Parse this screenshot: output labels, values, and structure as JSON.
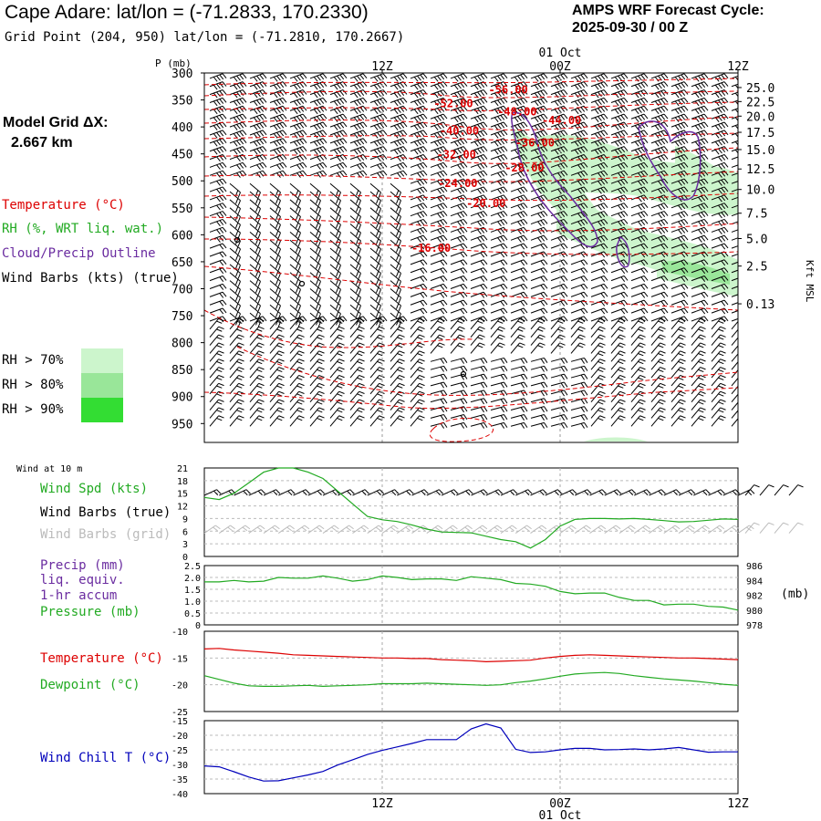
{
  "header": {
    "title": "Cape Adare:  lat/lon = (-71.2833, 170.2330)",
    "gridpoint": "Grid Point (204, 950) lat/lon = (-71.2810, 170.2667)",
    "amps_line1": "AMPS WRF Forecast Cycle:",
    "amps_line2": "2025-09-30 / 00  Z"
  },
  "model_grid": {
    "line1": "Model Grid ΔX:",
    "line2": "2.667 km"
  },
  "legend": {
    "temperature": "Temperature (°C)",
    "rh": "RH (%, WRT liq. wat.)",
    "cloud": "Cloud/Precip Outline",
    "wind": "Wind Barbs (kts) (true)",
    "rh70": "RH > 70%",
    "rh80": "RH > 80%",
    "rh90": "RH > 90%"
  },
  "colors": {
    "temperature": "#dd0000",
    "rh": "#22aa22",
    "cloud": "#6a2ca0",
    "rh70": "#ccf5cc",
    "rh80": "#99e699",
    "rh90": "#33dd33",
    "windchill": "#0000bb",
    "gridbarb": "#bbbbbb"
  },
  "time_axis": {
    "x_range": [
      0,
      36
    ],
    "ticks": [
      {
        "t": 12,
        "label": "12Z"
      },
      {
        "t": 24,
        "label": "00Z"
      },
      {
        "t": 36,
        "label": "12Z"
      }
    ],
    "date_label": "01 Oct"
  },
  "chart_data": [
    {
      "type": "contour",
      "name": "cross-section",
      "ylabel": "P (mb)",
      "ylim": [
        300,
        985
      ],
      "pressure_ticks": [
        300,
        350,
        400,
        450,
        500,
        550,
        600,
        650,
        700,
        750,
        800,
        850,
        900,
        950
      ],
      "right_axis_label": "Kft MSL",
      "height_ticks": [
        {
          "p": 327,
          "label": "25.0"
        },
        {
          "p": 353,
          "label": "22.5"
        },
        {
          "p": 380,
          "label": "20.0"
        },
        {
          "p": 410,
          "label": "17.5"
        },
        {
          "p": 442,
          "label": "15.0"
        },
        {
          "p": 478,
          "label": "12.5"
        },
        {
          "p": 516,
          "label": "10.0"
        },
        {
          "p": 560,
          "label": "7.5"
        },
        {
          "p": 607,
          "label": "5.0"
        },
        {
          "p": 658,
          "label": "2.5"
        },
        {
          "p": 728,
          "label": "0.13"
        }
      ],
      "temperature_labels": [
        {
          "t": 20.5,
          "p": 331,
          "label": "-56.00"
        },
        {
          "t": 16.8,
          "p": 357,
          "label": "-52.00"
        },
        {
          "t": 21.1,
          "p": 372,
          "label": "-48.00"
        },
        {
          "t": 24.1,
          "p": 388,
          "label": "-44.00"
        },
        {
          "t": 17.2,
          "p": 407,
          "label": "-40.00"
        },
        {
          "t": 22.3,
          "p": 429,
          "label": "-36.00"
        },
        {
          "t": 17.0,
          "p": 451,
          "label": "-32.00"
        },
        {
          "t": 21.6,
          "p": 476,
          "label": "-28.00"
        },
        {
          "t": 17.1,
          "p": 505,
          "label": "-24.00"
        },
        {
          "t": 19.0,
          "p": 542,
          "label": "-20.00"
        },
        {
          "t": 15.3,
          "p": 625,
          "label": "-16.00"
        }
      ]
    },
    {
      "type": "line",
      "name": "wind-10m",
      "title": "Wind at 10 m",
      "ylim": [
        0,
        21
      ],
      "yticks": [
        0,
        3,
        6,
        9,
        12,
        15,
        18,
        21
      ],
      "labels": [
        "Wind Spd (kts)",
        "Wind Barbs (true)",
        "Wind Barbs (grid)"
      ],
      "x": [
        0,
        1,
        2,
        3,
        4,
        5,
        6,
        7,
        8,
        9,
        10,
        11,
        12,
        13,
        14,
        15,
        16,
        17,
        18,
        19,
        20,
        21,
        22,
        23,
        24,
        25,
        26,
        27,
        28,
        29,
        30,
        31,
        32,
        33,
        34,
        35,
        36
      ],
      "values": [
        14,
        13.5,
        15,
        17.5,
        20,
        21,
        21,
        20,
        18.5,
        15.5,
        12.5,
        9.5,
        8.7,
        8.3,
        7.5,
        6.5,
        5.8,
        5.7,
        5.6,
        4.8,
        4,
        3.5,
        2,
        4,
        7.2,
        8.8,
        9,
        9,
        8.9,
        9,
        8.8,
        8.5,
        8.2,
        8.3,
        8.6,
        8.9,
        8.8
      ]
    },
    {
      "type": "line",
      "name": "precip-pressure",
      "labels": [
        "Precip (mm)",
        "liq. equiv.",
        "1-hr accum",
        "Pressure (mb)"
      ],
      "right_unit": "(mb)",
      "ylim_left": [
        0,
        2.5
      ],
      "yticks_left": [
        "0",
        "0.5",
        "1.0",
        "1.5",
        "2.0",
        "2.5"
      ],
      "ylim_right": [
        978,
        986
      ],
      "yticks_right": [
        978,
        980,
        982,
        984,
        986
      ],
      "x": [
        0,
        1,
        2,
        3,
        4,
        5,
        6,
        7,
        8,
        9,
        10,
        11,
        12,
        13,
        14,
        15,
        16,
        17,
        18,
        19,
        20,
        21,
        22,
        23,
        24,
        25,
        26,
        27,
        28,
        29,
        30,
        31,
        32,
        33,
        34,
        35,
        36
      ],
      "pressure": [
        983.8,
        983.8,
        984.0,
        983.8,
        983.9,
        984.4,
        984.3,
        984.3,
        984.6,
        984.3,
        983.9,
        984.1,
        984.6,
        984.4,
        984.1,
        984.2,
        984.2,
        984.0,
        984.5,
        984.3,
        984.1,
        983.6,
        983.5,
        983.2,
        982.5,
        982.2,
        982.3,
        982.3,
        981.7,
        981.3,
        981.3,
        980.7,
        980.8,
        980.8,
        980.5,
        980.4,
        980.0
      ]
    },
    {
      "type": "line",
      "name": "temp-dewpoint",
      "labels": [
        "Temperature (°C)",
        "Dewpoint (°C)"
      ],
      "ylim": [
        -25,
        -10
      ],
      "yticks": [
        -25,
        -20,
        -15,
        -10
      ],
      "x": [
        0,
        1,
        2,
        3,
        4,
        5,
        6,
        7,
        8,
        9,
        10,
        11,
        12,
        13,
        14,
        15,
        16,
        17,
        18,
        19,
        20,
        21,
        22,
        23,
        24,
        25,
        26,
        27,
        28,
        29,
        30,
        31,
        32,
        33,
        34,
        35,
        36
      ],
      "temperature": [
        -13.3,
        -13.2,
        -13.5,
        -13.7,
        -13.9,
        -14.1,
        -14.4,
        -14.5,
        -14.6,
        -14.7,
        -14.8,
        -14.9,
        -15.0,
        -15.0,
        -15.1,
        -15.1,
        -15.3,
        -15.4,
        -15.5,
        -15.7,
        -15.6,
        -15.5,
        -15.4,
        -15.0,
        -14.7,
        -14.5,
        -14.4,
        -14.5,
        -14.6,
        -14.7,
        -14.8,
        -14.9,
        -15.0,
        -15.0,
        -15.1,
        -15.2,
        -15.3
      ],
      "dewpoint": [
        -18.3,
        -19.0,
        -19.7,
        -20.2,
        -20.3,
        -20.3,
        -20.2,
        -20.1,
        -20.3,
        -20.2,
        -20.1,
        -20.0,
        -19.8,
        -19.8,
        -19.8,
        -19.7,
        -19.8,
        -19.9,
        -20.0,
        -20.1,
        -20.0,
        -19.6,
        -19.3,
        -18.9,
        -18.4,
        -18.0,
        -17.8,
        -17.7,
        -17.9,
        -18.3,
        -18.6,
        -18.9,
        -19.1,
        -19.3,
        -19.6,
        -19.9,
        -20.1
      ]
    },
    {
      "type": "line",
      "name": "wind-chill",
      "labels": [
        "Wind Chill T (°C)"
      ],
      "ylim": [
        -40,
        -15
      ],
      "yticks": [
        -40,
        -35,
        -30,
        -25,
        -20,
        -15
      ],
      "x": [
        0,
        1,
        2,
        3,
        4,
        5,
        6,
        7,
        8,
        9,
        10,
        11,
        12,
        13,
        14,
        15,
        16,
        17,
        18,
        19,
        20,
        21,
        22,
        23,
        24,
        25,
        26,
        27,
        28,
        29,
        30,
        31,
        32,
        33,
        34,
        35,
        36
      ],
      "values": [
        -30.5,
        -30.8,
        -32.5,
        -34.3,
        -35.7,
        -35.6,
        -34.6,
        -33.6,
        -32.4,
        -30.2,
        -28.4,
        -26.6,
        -25.2,
        -24.0,
        -22.8,
        -21.5,
        -21.5,
        -21.5,
        -17.8,
        -16.1,
        -17.5,
        -24.8,
        -25.9,
        -25.7,
        -25.0,
        -24.5,
        -24.5,
        -25.0,
        -24.9,
        -24.7,
        -25.0,
        -24.7,
        -24.2,
        -25.0,
        -25.8,
        -25.7,
        -25.7
      ]
    }
  ]
}
